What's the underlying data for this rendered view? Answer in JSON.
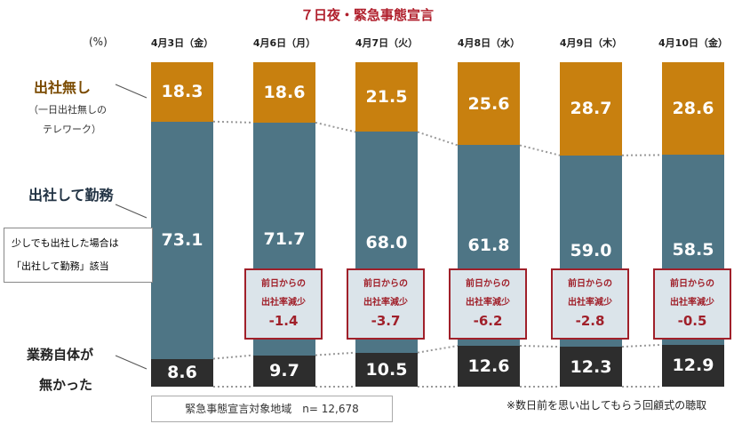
{
  "chart_data": {
    "type": "bar",
    "stacked": true,
    "title": "７日夜・緊急事態宣言",
    "unit": "(%)",
    "categories": [
      "4月3日（金）",
      "4月6日（月）",
      "4月7日（火）",
      "4月8日（水）",
      "4月9日（木）",
      "4月10日（金）"
    ],
    "series": [
      {
        "name": "業務自体が無かった",
        "color": "#2d2d2d",
        "values": [
          8.6,
          9.7,
          10.5,
          12.6,
          12.3,
          12.9
        ]
      },
      {
        "name": "出社して勤務",
        "color": "#4e7585",
        "values": [
          73.1,
          71.7,
          68.0,
          61.8,
          59.0,
          58.5
        ]
      },
      {
        "name": "出社無し",
        "color": "#c8800f",
        "values": [
          18.3,
          18.6,
          21.5,
          25.6,
          28.7,
          28.6
        ]
      }
    ],
    "decrease_label": [
      "前日からの",
      "出社率減少"
    ],
    "decrease_values": [
      null,
      "-1.4",
      "-3.7",
      "-6.2",
      "-2.8",
      "-0.5"
    ],
    "ylim": [
      0,
      100
    ]
  },
  "labels": {
    "no_office": "出社無し",
    "no_office_sub1": "（一日出社無しの",
    "no_office_sub2": "テレワーク）",
    "office": "出社して勤務",
    "office_note1": "少しでも出社した場合は",
    "office_note2": "「出社して勤務」該当",
    "none1": "業務自体が",
    "none2": "無かった"
  },
  "footer": {
    "sample": "緊急事態宣言対象地域　n= 12,678",
    "method": "※数日前を思い出してもらう回顧式の聴取"
  }
}
